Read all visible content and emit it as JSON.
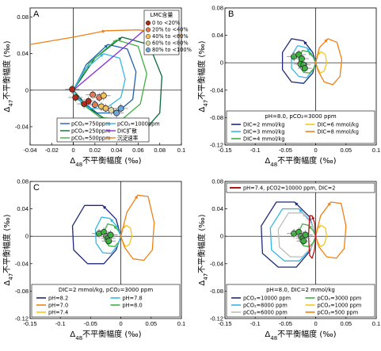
{
  "chart_data": [
    {
      "panel": "A",
      "type": "line",
      "xlabel_prefix": "Δ",
      "xlabel_sub": "48",
      "xlabel_suffix": "不平衡幅度 (‰)",
      "ylabel_prefix": "Δ",
      "ylabel_sub": "47",
      "ylabel_suffix": "不平衡幅度 (‰)",
      "xlim": [
        -0.04,
        0.1
      ],
      "ylim": [
        -0.06,
        0.09
      ],
      "xticks": [
        "-0.04",
        "-0.02",
        "0",
        "0.02",
        "0.04",
        "0.06",
        "0.08",
        "0.1"
      ],
      "yticks": [
        "-0.04",
        "0",
        "0.04",
        "0.08"
      ],
      "series": [
        {
          "name": "pCO₂=750ppm",
          "color": "#1f5fb0",
          "dash": "",
          "x": [
            0,
            0.012,
            0.032,
            0.05,
            0.058,
            0.055,
            0.04,
            0.022,
            0.008,
            0
          ],
          "y": [
            0,
            0.028,
            0.05,
            0.045,
            0.02,
            -0.01,
            -0.025,
            -0.025,
            -0.012,
            0
          ]
        },
        {
          "name": "pCO₂=250ppm",
          "color": "#0b6b3a",
          "dash": "",
          "x": [
            0,
            0.02,
            0.045,
            0.07,
            0.082,
            0.08,
            0.065,
            0.04,
            0.015,
            0
          ],
          "y": [
            0,
            0.035,
            0.058,
            0.05,
            0.015,
            -0.025,
            -0.045,
            -0.04,
            -0.02,
            0
          ]
        },
        {
          "name": "pCO₂=500ppm",
          "color": "#3fb044",
          "dash": "",
          "x": [
            0,
            0.015,
            0.04,
            0.06,
            0.068,
            0.062,
            0.045,
            0.025,
            0.008,
            0
          ],
          "y": [
            0,
            0.03,
            0.055,
            0.048,
            0.018,
            -0.015,
            -0.032,
            -0.03,
            -0.015,
            0
          ]
        },
        {
          "name": "pCO₂=1000ppm",
          "color": "#35b7e6",
          "dash": "",
          "x": [
            0,
            0.01,
            0.028,
            0.043,
            0.048,
            0.044,
            0.03,
            0.015,
            0.004,
            0
          ],
          "y": [
            0,
            0.022,
            0.04,
            0.035,
            0.012,
            -0.008,
            -0.02,
            -0.02,
            -0.01,
            0
          ]
        },
        {
          "name": "DIC扩散",
          "color": "#8a2be2",
          "dash": "",
          "x": [
            0,
            0.085
          ],
          "y": [
            0,
            0.085
          ]
        },
        {
          "name": "沉淀速率",
          "color": "#f08018",
          "dash": "",
          "x": [
            -0.04,
            0,
            0.03,
            0.06,
            0.09,
            0.1
          ],
          "y": [
            0.05,
            0.058,
            0.065,
            0.066,
            0.062,
            0.06
          ]
        }
      ],
      "points": [
        {
          "x": -0.001,
          "y": 0.001,
          "group": "0 to <20%"
        },
        {
          "x": 0.002,
          "y": -0.008,
          "group": "0 to <20%"
        },
        {
          "x": 0.01,
          "y": -0.015,
          "group": "0 to <20%"
        },
        {
          "x": 0.014,
          "y": -0.012,
          "group": "0 to <20%"
        },
        {
          "x": 0.018,
          "y": -0.005,
          "group": "20% to <40%"
        },
        {
          "x": 0.02,
          "y": -0.016,
          "group": "20% to <40%"
        },
        {
          "x": 0.024,
          "y": -0.008,
          "group": "20% to <40%"
        },
        {
          "x": 0.026,
          "y": -0.018,
          "group": "40% to <60%"
        },
        {
          "x": 0.028,
          "y": -0.006,
          "group": "40% to <60%"
        },
        {
          "x": 0.03,
          "y": -0.02,
          "group": "40% to <60%"
        },
        {
          "x": 0.035,
          "y": -0.022,
          "group": "60% to <80%"
        },
        {
          "x": 0.04,
          "y": -0.025,
          "group": "80% to <100%"
        },
        {
          "x": 0.044,
          "y": -0.02,
          "group": "80% to <100%"
        }
      ],
      "pointLegendTitle": "LMC含量",
      "pointLegend": [
        {
          "label": "0 to <20%",
          "color": "#b22a1a"
        },
        {
          "label": "20% to <40%",
          "color": "#e07a55"
        },
        {
          "label": "40% to <60%",
          "color": "#f6c35a"
        },
        {
          "label": "60% to <80%",
          "color": "#d9d6a8"
        },
        {
          "label": "80% to <100%",
          "color": "#6fa9d9"
        }
      ],
      "lineLegend": [
        {
          "label": "pCO₂=750ppm",
          "color": "#1f5fb0"
        },
        {
          "label": "pCO₂=1000ppm",
          "color": "#35b7e6"
        },
        {
          "label": "pCO₂=250ppm",
          "color": "#0b6b3a"
        },
        {
          "label": "DIC扩散",
          "color": "#8a2be2"
        },
        {
          "label": "pCO₂=500ppm",
          "color": "#3fb044"
        },
        {
          "label": "沉淀速率",
          "color": "#f08018"
        }
      ]
    },
    {
      "panel": "B",
      "type": "line",
      "xlabel_prefix": "Δ",
      "xlabel_sub": "48",
      "xlabel_suffix": "不平衡幅度 (‰)",
      "ylabel_prefix": "Δ",
      "ylabel_sub": "47",
      "ylabel_suffix": "不平衡幅度 (‰)",
      "xlim": [
        -0.15,
        0.1
      ],
      "ylim": [
        -0.12,
        0.08
      ],
      "xticks": [
        "-0.15",
        "-0.1",
        "-0.05",
        "0",
        "0.05",
        "0.1"
      ],
      "yticks": [
        "-0.12",
        "-0.08",
        "-0.04",
        "0",
        "0.04",
        "0.08"
      ],
      "series": [
        {
          "name": "DIC=2 mmol/kg",
          "color": "#1e2a7a",
          "dash": "",
          "x": [
            0,
            -0.005,
            -0.02,
            -0.04,
            -0.055,
            -0.055,
            -0.04,
            -0.02,
            -0.005,
            0
          ],
          "y": [
            0,
            0.015,
            0.032,
            0.035,
            0.015,
            -0.01,
            -0.028,
            -0.03,
            -0.015,
            0
          ]
        },
        {
          "name": "DIC=3 mmol/kg",
          "color": "#35b7e6",
          "dash": "",
          "x": [
            0,
            -0.005,
            -0.015,
            -0.03,
            -0.04,
            -0.04,
            -0.028,
            -0.015,
            -0.004,
            0
          ],
          "y": [
            0,
            0.01,
            0.022,
            0.025,
            0.01,
            -0.008,
            -0.02,
            -0.022,
            -0.01,
            0
          ]
        },
        {
          "name": "DIC=4 mmol/kg",
          "color": "#3fb044",
          "dash": "",
          "x": [
            0,
            -0.004,
            -0.012,
            -0.022,
            -0.028,
            -0.027,
            -0.02,
            -0.01,
            -0.003,
            0
          ],
          "y": [
            0,
            0.008,
            0.016,
            0.018,
            0.006,
            -0.006,
            -0.014,
            -0.015,
            -0.008,
            0
          ]
        },
        {
          "name": "DIC=6 mmol/kg",
          "color": "#f6c61a",
          "dash": "",
          "x": [
            0,
            0.003,
            0.009,
            0.016,
            0.018,
            0.014,
            0.008,
            0.003,
            0
          ],
          "y": [
            0,
            0.012,
            0.016,
            0.012,
            0,
            -0.012,
            -0.015,
            -0.008,
            0
          ]
        },
        {
          "name": "DIC=8 mmol/kg",
          "color": "#f08018",
          "dash": "",
          "x": [
            0,
            0.006,
            0.02,
            0.035,
            0.043,
            0.04,
            0.028,
            0.014,
            0.004,
            0
          ],
          "y": [
            0,
            0.022,
            0.035,
            0.03,
            0.005,
            -0.02,
            -0.032,
            -0.028,
            -0.012,
            0
          ]
        }
      ],
      "points": [
        {
          "x": -0.036,
          "y": 0.009
        },
        {
          "x": -0.028,
          "y": 0.012
        },
        {
          "x": -0.023,
          "y": 0.006
        },
        {
          "x": -0.025,
          "y": -0.002
        },
        {
          "x": -0.02,
          "y": -0.003
        },
        {
          "x": -0.018,
          "y": -0.008
        }
      ],
      "legendTitle": "pH=8.0, pCO₂=3000 ppm",
      "legend": [
        {
          "label": "DIC=2 mmol/kg",
          "color": "#1e2a7a"
        },
        {
          "label": "DIC=6 mmol/kg",
          "color": "#f6c61a"
        },
        {
          "label": "DIC=3 mmol/kg",
          "color": "#35b7e6"
        },
        {
          "label": "DIC=8 mmol/kg",
          "color": "#f08018"
        },
        {
          "label": "DIC=4 mmol/kg",
          "color": "#3fb044"
        }
      ]
    },
    {
      "panel": "C",
      "type": "line",
      "xlabel_prefix": "Δ",
      "xlabel_sub": "48",
      "xlabel_suffix": "不平衡幅度 (‰)",
      "ylabel_prefix": "Δ",
      "ylabel_sub": "47",
      "ylabel_suffix": "不平衡幅度 (‰)",
      "xlim": [
        -0.15,
        0.1
      ],
      "ylim": [
        -0.12,
        0.08
      ],
      "xticks": [
        "-0.15",
        "-0.1",
        "-0.05",
        "0",
        "0.05",
        "0.1"
      ],
      "yticks": [
        "-0.12",
        "-0.08",
        "-0.04",
        "0",
        "0.04",
        "0.08"
      ],
      "series": [
        {
          "name": "pH=8.2",
          "color": "#1e2a7a",
          "dash": "",
          "x": [
            0,
            -0.008,
            -0.03,
            -0.06,
            -0.08,
            -0.078,
            -0.055,
            -0.028,
            -0.008,
            0
          ],
          "y": [
            0,
            0.025,
            0.045,
            0.045,
            0.015,
            -0.02,
            -0.04,
            -0.04,
            -0.02,
            0
          ]
        },
        {
          "name": "pH=8.0",
          "color": "#3fb044",
          "dash": "",
          "x": [
            0,
            -0.004,
            -0.012,
            -0.022,
            -0.028,
            -0.027,
            -0.02,
            -0.01,
            -0.003,
            0
          ],
          "y": [
            0,
            0.008,
            0.016,
            0.018,
            0.006,
            -0.006,
            -0.014,
            -0.015,
            -0.008,
            0
          ]
        },
        {
          "name": "pH=7.8",
          "color": "#35b7e6",
          "dash": "",
          "x": [
            0,
            -0.006,
            -0.018,
            -0.032,
            -0.042,
            -0.041,
            -0.03,
            -0.016,
            -0.005,
            0
          ],
          "y": [
            0,
            0.014,
            0.026,
            0.028,
            0.01,
            -0.01,
            -0.024,
            -0.025,
            -0.013,
            0
          ]
        },
        {
          "name": "pH=7.4",
          "color": "#f6c61a",
          "dash": "",
          "x": [
            0,
            0.003,
            0.009,
            0.016,
            0.018,
            0.014,
            0.008,
            0.003,
            0
          ],
          "y": [
            0,
            0.012,
            0.016,
            0.012,
            0,
            -0.012,
            -0.015,
            -0.008,
            0
          ]
        },
        {
          "name": "pH=7.0",
          "color": "#f08018",
          "dash": "",
          "x": [
            0,
            0.01,
            0.028,
            0.045,
            0.055,
            0.052,
            0.038,
            0.02,
            0.006,
            0
          ],
          "y": [
            0,
            0.035,
            0.06,
            0.058,
            0.02,
            -0.02,
            -0.035,
            -0.033,
            -0.016,
            0
          ]
        }
      ],
      "points": [
        {
          "x": -0.036,
          "y": 0.004
        },
        {
          "x": -0.028,
          "y": 0.006
        },
        {
          "x": -0.024,
          "y": 0.0
        },
        {
          "x": -0.021,
          "y": -0.003
        },
        {
          "x": -0.02,
          "y": -0.007
        },
        {
          "x": -0.017,
          "y": 0.002
        }
      ],
      "legendTitle": "DIC=2 mmol/kg, pCO₂=3000 ppm",
      "legend": [
        {
          "label": "pH=8.2",
          "color": "#1e2a7a"
        },
        {
          "label": "pH=7.8",
          "color": "#35b7e6"
        },
        {
          "label": "pH=7.0",
          "color": "#f08018"
        },
        {
          "label": "pH=8.0",
          "color": "#3fb044"
        },
        {
          "label": "pH=7.4",
          "color": "#f6c61a"
        }
      ]
    },
    {
      "panel": "D",
      "type": "line",
      "xlabel_prefix": "Δ",
      "xlabel_sub": "48",
      "xlabel_suffix": "不平衡幅度 (‰)",
      "ylabel_prefix": "Δ",
      "ylabel_sub": "47",
      "ylabel_suffix": "不平衡幅度 (‰)",
      "xlim": [
        -0.15,
        0.1
      ],
      "ylim": [
        -0.12,
        0.08
      ],
      "xticks": [
        "-0.15",
        "-0.1",
        "-0.05",
        "0",
        "0.05",
        "0.1"
      ],
      "yticks": [
        "-0.12",
        "-0.08",
        "-0.04",
        "0",
        "0.04",
        "0.08"
      ],
      "series": [
        {
          "name": "pCO₂=10000 ppm",
          "color": "#1e2a7a",
          "dash": "",
          "x": [
            0,
            -0.01,
            -0.035,
            -0.065,
            -0.09,
            -0.088,
            -0.062,
            -0.032,
            -0.01,
            0
          ],
          "y": [
            0,
            0.028,
            0.05,
            0.05,
            0.015,
            -0.025,
            -0.045,
            -0.045,
            -0.022,
            0
          ]
        },
        {
          "name": "pCO₂=8000 ppm",
          "color": "#35b7e6",
          "dash": "",
          "x": [
            0,
            -0.008,
            -0.028,
            -0.055,
            -0.075,
            -0.073,
            -0.052,
            -0.027,
            -0.008,
            0
          ],
          "y": [
            0,
            0.022,
            0.04,
            0.04,
            0.012,
            -0.02,
            -0.036,
            -0.036,
            -0.018,
            0
          ]
        },
        {
          "name": "pCO₂=6000 ppm",
          "color": "#bdbdbd",
          "dash": "",
          "x": [
            0,
            -0.007,
            -0.022,
            -0.045,
            -0.062,
            -0.06,
            -0.042,
            -0.022,
            -0.006,
            0
          ],
          "y": [
            0,
            0.018,
            0.034,
            0.034,
            0.01,
            -0.016,
            -0.03,
            -0.03,
            -0.015,
            0
          ]
        },
        {
          "name": "pCO₂=3000 ppm",
          "color": "#3fb044",
          "dash": "",
          "x": [
            0,
            -0.004,
            -0.012,
            -0.022,
            -0.028,
            -0.027,
            -0.02,
            -0.01,
            -0.003,
            0
          ],
          "y": [
            0,
            0.008,
            0.016,
            0.018,
            0.006,
            -0.006,
            -0.014,
            -0.015,
            -0.008,
            0
          ]
        },
        {
          "name": "pCO₂=1000 ppm",
          "color": "#f6c61a",
          "dash": "",
          "x": [
            0,
            0.003,
            0.009,
            0.016,
            0.018,
            0.014,
            0.008,
            0.003,
            0
          ],
          "y": [
            0,
            0.012,
            0.016,
            0.012,
            0,
            -0.012,
            -0.015,
            -0.008,
            0
          ]
        },
        {
          "name": "pCO₂=500 ppm",
          "color": "#f08018",
          "dash": "",
          "x": [
            0,
            0.008,
            0.025,
            0.042,
            0.05,
            0.047,
            0.034,
            0.018,
            0.005,
            0
          ],
          "y": [
            0,
            0.03,
            0.05,
            0.048,
            0.015,
            -0.018,
            -0.032,
            -0.03,
            -0.015,
            0
          ]
        },
        {
          "name": "pH=7.4, pCO2=10000 ppm, DIC=2",
          "color": "#b0171a",
          "dash": "",
          "x": [
            0,
            -0.002,
            -0.006,
            -0.01,
            -0.012,
            -0.01,
            -0.006,
            -0.002,
            0
          ],
          "y": [
            0,
            0.02,
            0.03,
            0.03,
            0,
            -0.028,
            -0.032,
            -0.02,
            0
          ]
        }
      ],
      "points": [
        {
          "x": -0.036,
          "y": 0.004
        },
        {
          "x": -0.028,
          "y": 0.006
        },
        {
          "x": -0.024,
          "y": 0.0
        },
        {
          "x": -0.021,
          "y": -0.003
        },
        {
          "x": -0.02,
          "y": -0.007
        },
        {
          "x": -0.017,
          "y": 0.002
        }
      ],
      "topLegend": "pH=7.4, pCO2=10000 ppm, DIC=2",
      "legendTitle": "pH=8.0, DIC=2 mmol/kg",
      "legend": [
        {
          "label": "pCO₂=10000 ppm",
          "color": "#1e2a7a"
        },
        {
          "label": "pCO₂=3000 ppm",
          "color": "#3fb044"
        },
        {
          "label": "pCO₂=8000 ppm",
          "color": "#35b7e6"
        },
        {
          "label": "pCO₂=1000 ppm",
          "color": "#f6c61a"
        },
        {
          "label": "pCO₂=6000 ppm",
          "color": "#bdbdbd"
        },
        {
          "label": "pCO₂=500 ppm",
          "color": "#f08018"
        }
      ]
    }
  ]
}
